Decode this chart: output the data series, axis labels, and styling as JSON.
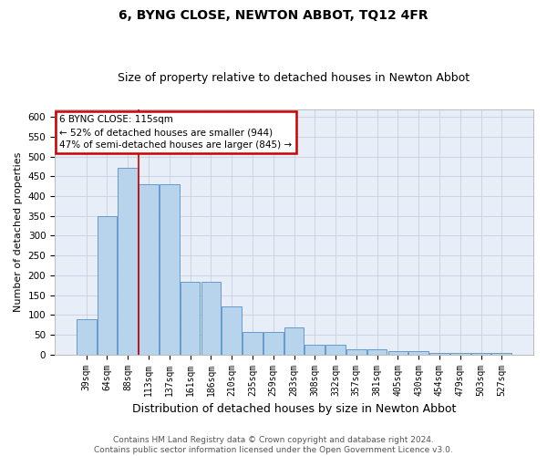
{
  "title": "6, BYNG CLOSE, NEWTON ABBOT, TQ12 4FR",
  "subtitle": "Size of property relative to detached houses in Newton Abbot",
  "xlabel": "Distribution of detached houses by size in Newton Abbot",
  "ylabel": "Number of detached properties",
  "footer_line1": "Contains HM Land Registry data © Crown copyright and database right 2024.",
  "footer_line2": "Contains public sector information licensed under the Open Government Licence v3.0.",
  "categories": [
    "39sqm",
    "64sqm",
    "88sqm",
    "113sqm",
    "137sqm",
    "161sqm",
    "186sqm",
    "210sqm",
    "235sqm",
    "259sqm",
    "283sqm",
    "308sqm",
    "332sqm",
    "357sqm",
    "381sqm",
    "405sqm",
    "430sqm",
    "454sqm",
    "479sqm",
    "503sqm",
    "527sqm"
  ],
  "values": [
    88,
    349,
    472,
    430,
    430,
    184,
    184,
    122,
    56,
    56,
    68,
    25,
    25,
    12,
    12,
    8,
    8,
    5,
    5,
    5,
    5
  ],
  "bar_color": "#b8d4ec",
  "bar_edge_color": "#6699cc",
  "annotation_text_line1": "6 BYNG CLOSE: 115sqm",
  "annotation_text_line2": "← 52% of detached houses are smaller (944)",
  "annotation_text_line3": "47% of semi-detached houses are larger (845) →",
  "annotation_box_facecolor": "#ffffff",
  "annotation_box_edgecolor": "#cc0000",
  "ylim": [
    0,
    620
  ],
  "yticks": [
    0,
    50,
    100,
    150,
    200,
    250,
    300,
    350,
    400,
    450,
    500,
    550,
    600
  ],
  "bg_color": "#e8eef8",
  "grid_color": "#c8d0e0",
  "vline_x_index": 2.5,
  "title_fontsize": 10,
  "subtitle_fontsize": 9,
  "ylabel_fontsize": 8,
  "xlabel_fontsize": 9,
  "tick_fontsize": 7,
  "footer_fontsize": 6.5
}
